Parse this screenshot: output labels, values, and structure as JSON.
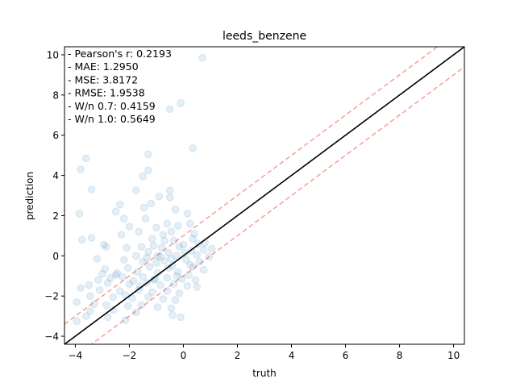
{
  "chart_data": {
    "type": "scatter",
    "title": "leeds_benzene",
    "xlabel": "truth",
    "ylabel": "prediction",
    "xlim": [
      -4.4,
      10.4
    ],
    "ylim": [
      -4.4,
      10.4
    ],
    "xticks": [
      -4,
      -2,
      0,
      2,
      4,
      6,
      8,
      10
    ],
    "yticks": [
      -4,
      -2,
      0,
      2,
      4,
      6,
      8,
      10
    ],
    "xtick_labels": [
      "−4",
      "−2",
      "0",
      "2",
      "4",
      "6",
      "8",
      "10"
    ],
    "ytick_labels": [
      "−4",
      "−2",
      "0",
      "2",
      "4",
      "6",
      "8",
      "10"
    ],
    "grid": false,
    "colors": {
      "points": "#1f77b4",
      "identity_line": "#000000",
      "band_lines": "#f4a09a"
    },
    "identity_line": {
      "slope": 1,
      "intercept": 0
    },
    "band_lines": [
      {
        "slope": 1,
        "intercept": 1.0
      },
      {
        "slope": 1,
        "intercept": -1.0
      }
    ],
    "annotations": [
      "- Pearson's r: 0.2193",
      "- MAE: 1.2950",
      "- MSE: 3.8172",
      "- RMSE: 1.9538",
      "- W/n 0.7: 0.4159",
      "- W/n 1.0: 0.5649"
    ],
    "points": [
      {
        "x": 0.7,
        "y": 9.85
      },
      {
        "x": -0.5,
        "y": 7.3
      },
      {
        "x": -0.1,
        "y": 7.6
      },
      {
        "x": 0.35,
        "y": 5.35
      },
      {
        "x": -1.3,
        "y": 5.05
      },
      {
        "x": -3.6,
        "y": 4.85
      },
      {
        "x": -3.8,
        "y": 4.3
      },
      {
        "x": -1.3,
        "y": 4.25
      },
      {
        "x": -1.5,
        "y": 3.95
      },
      {
        "x": -3.4,
        "y": 3.3
      },
      {
        "x": -1.75,
        "y": 3.25
      },
      {
        "x": -0.5,
        "y": 3.25
      },
      {
        "x": -0.9,
        "y": 2.95
      },
      {
        "x": -0.5,
        "y": 2.9
      },
      {
        "x": -1.2,
        "y": 2.6
      },
      {
        "x": -2.35,
        "y": 2.55
      },
      {
        "x": -1.45,
        "y": 2.4
      },
      {
        "x": -2.5,
        "y": 2.2
      },
      {
        "x": -0.3,
        "y": 2.3
      },
      {
        "x": 0.15,
        "y": 2.1
      },
      {
        "x": -3.85,
        "y": 2.1
      },
      {
        "x": -2.2,
        "y": 1.85
      },
      {
        "x": -1.4,
        "y": 1.85
      },
      {
        "x": -0.6,
        "y": 1.6
      },
      {
        "x": -1.0,
        "y": 1.4
      },
      {
        "x": -0.2,
        "y": 1.5
      },
      {
        "x": 0.25,
        "y": 1.6
      },
      {
        "x": -2.0,
        "y": 1.45
      },
      {
        "x": -1.65,
        "y": 1.2
      },
      {
        "x": -0.45,
        "y": 1.2
      },
      {
        "x": -0.75,
        "y": 1.05
      },
      {
        "x": -2.3,
        "y": 1.05
      },
      {
        "x": -3.4,
        "y": 0.9
      },
      {
        "x": -3.75,
        "y": 0.8
      },
      {
        "x": -1.15,
        "y": 0.85
      },
      {
        "x": -0.35,
        "y": 0.75
      },
      {
        "x": 0.35,
        "y": 0.85
      },
      {
        "x": 0.55,
        "y": 0.6
      },
      {
        "x": -2.95,
        "y": 0.55
      },
      {
        "x": -2.85,
        "y": 0.45
      },
      {
        "x": -1.55,
        "y": 0.45
      },
      {
        "x": -1.1,
        "y": 0.5
      },
      {
        "x": -0.8,
        "y": 0.4
      },
      {
        "x": -0.15,
        "y": 0.45
      },
      {
        "x": 0.0,
        "y": 0.55
      },
      {
        "x": 0.8,
        "y": 0.65
      },
      {
        "x": -2.1,
        "y": 0.4
      },
      {
        "x": -1.3,
        "y": 0.2
      },
      {
        "x": -0.55,
        "y": 0.15
      },
      {
        "x": 0.3,
        "y": 0.25
      },
      {
        "x": 0.75,
        "y": 0.3
      },
      {
        "x": 1.05,
        "y": 0.35
      },
      {
        "x": -1.75,
        "y": 0.0
      },
      {
        "x": -0.95,
        "y": 0.0
      },
      {
        "x": -0.25,
        "y": 0.0
      },
      {
        "x": 0.5,
        "y": 0.05
      },
      {
        "x": 0.95,
        "y": -0.05
      },
      {
        "x": -3.2,
        "y": -0.15
      },
      {
        "x": -2.2,
        "y": -0.2
      },
      {
        "x": -1.5,
        "y": -0.3
      },
      {
        "x": -0.7,
        "y": -0.25
      },
      {
        "x": 0.1,
        "y": -0.2
      },
      {
        "x": 0.6,
        "y": -0.3
      },
      {
        "x": -2.9,
        "y": -0.65
      },
      {
        "x": -2.05,
        "y": -0.6
      },
      {
        "x": -1.25,
        "y": -0.55
      },
      {
        "x": -0.4,
        "y": -0.5
      },
      {
        "x": 0.35,
        "y": -0.55
      },
      {
        "x": 0.75,
        "y": -0.7
      },
      {
        "x": -3.0,
        "y": -0.9
      },
      {
        "x": -2.45,
        "y": -0.85
      },
      {
        "x": -1.7,
        "y": -0.8
      },
      {
        "x": -0.95,
        "y": -0.85
      },
      {
        "x": -0.2,
        "y": -0.8
      },
      {
        "x": 0.2,
        "y": -0.95
      },
      {
        "x": -3.15,
        "y": -1.2
      },
      {
        "x": -2.7,
        "y": -1.1
      },
      {
        "x": -2.25,
        "y": -1.05
      },
      {
        "x": -1.5,
        "y": -1.05
      },
      {
        "x": -1.05,
        "y": -1.15
      },
      {
        "x": -0.6,
        "y": -1.1
      },
      {
        "x": -0.05,
        "y": -1.15
      },
      {
        "x": 0.45,
        "y": -1.2
      },
      {
        "x": -3.5,
        "y": -1.45
      },
      {
        "x": -2.8,
        "y": -1.35
      },
      {
        "x": -2.0,
        "y": -1.4
      },
      {
        "x": -1.35,
        "y": -1.35
      },
      {
        "x": -0.85,
        "y": -1.45
      },
      {
        "x": -0.35,
        "y": -1.4
      },
      {
        "x": 0.15,
        "y": -1.5
      },
      {
        "x": 0.5,
        "y": -1.55
      },
      {
        "x": -3.8,
        "y": -1.6
      },
      {
        "x": -3.1,
        "y": -1.7
      },
      {
        "x": -2.35,
        "y": -1.75
      },
      {
        "x": -1.65,
        "y": -1.7
      },
      {
        "x": -1.15,
        "y": -1.8
      },
      {
        "x": -0.6,
        "y": -1.75
      },
      {
        "x": -0.15,
        "y": -1.85
      },
      {
        "x": -3.45,
        "y": -2.0
      },
      {
        "x": -2.6,
        "y": -2.05
      },
      {
        "x": -1.9,
        "y": -2.1
      },
      {
        "x": -1.3,
        "y": -2.05
      },
      {
        "x": -0.75,
        "y": -2.15
      },
      {
        "x": -0.3,
        "y": -2.2
      },
      {
        "x": -3.95,
        "y": -2.3
      },
      {
        "x": -3.3,
        "y": -2.4
      },
      {
        "x": -2.85,
        "y": -2.45
      },
      {
        "x": -2.05,
        "y": -2.5
      },
      {
        "x": -1.55,
        "y": -2.45
      },
      {
        "x": -0.95,
        "y": -2.55
      },
      {
        "x": -0.45,
        "y": -2.6
      },
      {
        "x": -3.45,
        "y": -2.75
      },
      {
        "x": -2.6,
        "y": -2.7
      },
      {
        "x": -1.75,
        "y": -2.8
      },
      {
        "x": -0.4,
        "y": -2.95
      },
      {
        "x": -3.6,
        "y": -3.0
      },
      {
        "x": -2.8,
        "y": -3.05
      },
      {
        "x": -0.1,
        "y": -3.05
      },
      {
        "x": -3.95,
        "y": -3.25
      },
      {
        "x": -2.15,
        "y": -3.2
      },
      {
        "x": -1.35,
        "y": -0.1
      },
      {
        "x": -0.45,
        "y": -0.15
      },
      {
        "x": 0.25,
        "y": -0.45
      },
      {
        "x": -1.85,
        "y": -1.25
      },
      {
        "x": -0.55,
        "y": -0.6
      },
      {
        "x": -1.0,
        "y": -0.35
      },
      {
        "x": -2.5,
        "y": -0.95
      },
      {
        "x": 0.05,
        "y": 0.15
      },
      {
        "x": -0.7,
        "y": 0.75
      },
      {
        "x": -1.6,
        "y": -1.5
      },
      {
        "x": -0.25,
        "y": -1.0
      },
      {
        "x": -2.15,
        "y": -1.95
      },
      {
        "x": -1.1,
        "y": -1.2
      },
      {
        "x": 0.4,
        "y": 1.1
      },
      {
        "x": -0.85,
        "y": -0.05
      }
    ]
  }
}
